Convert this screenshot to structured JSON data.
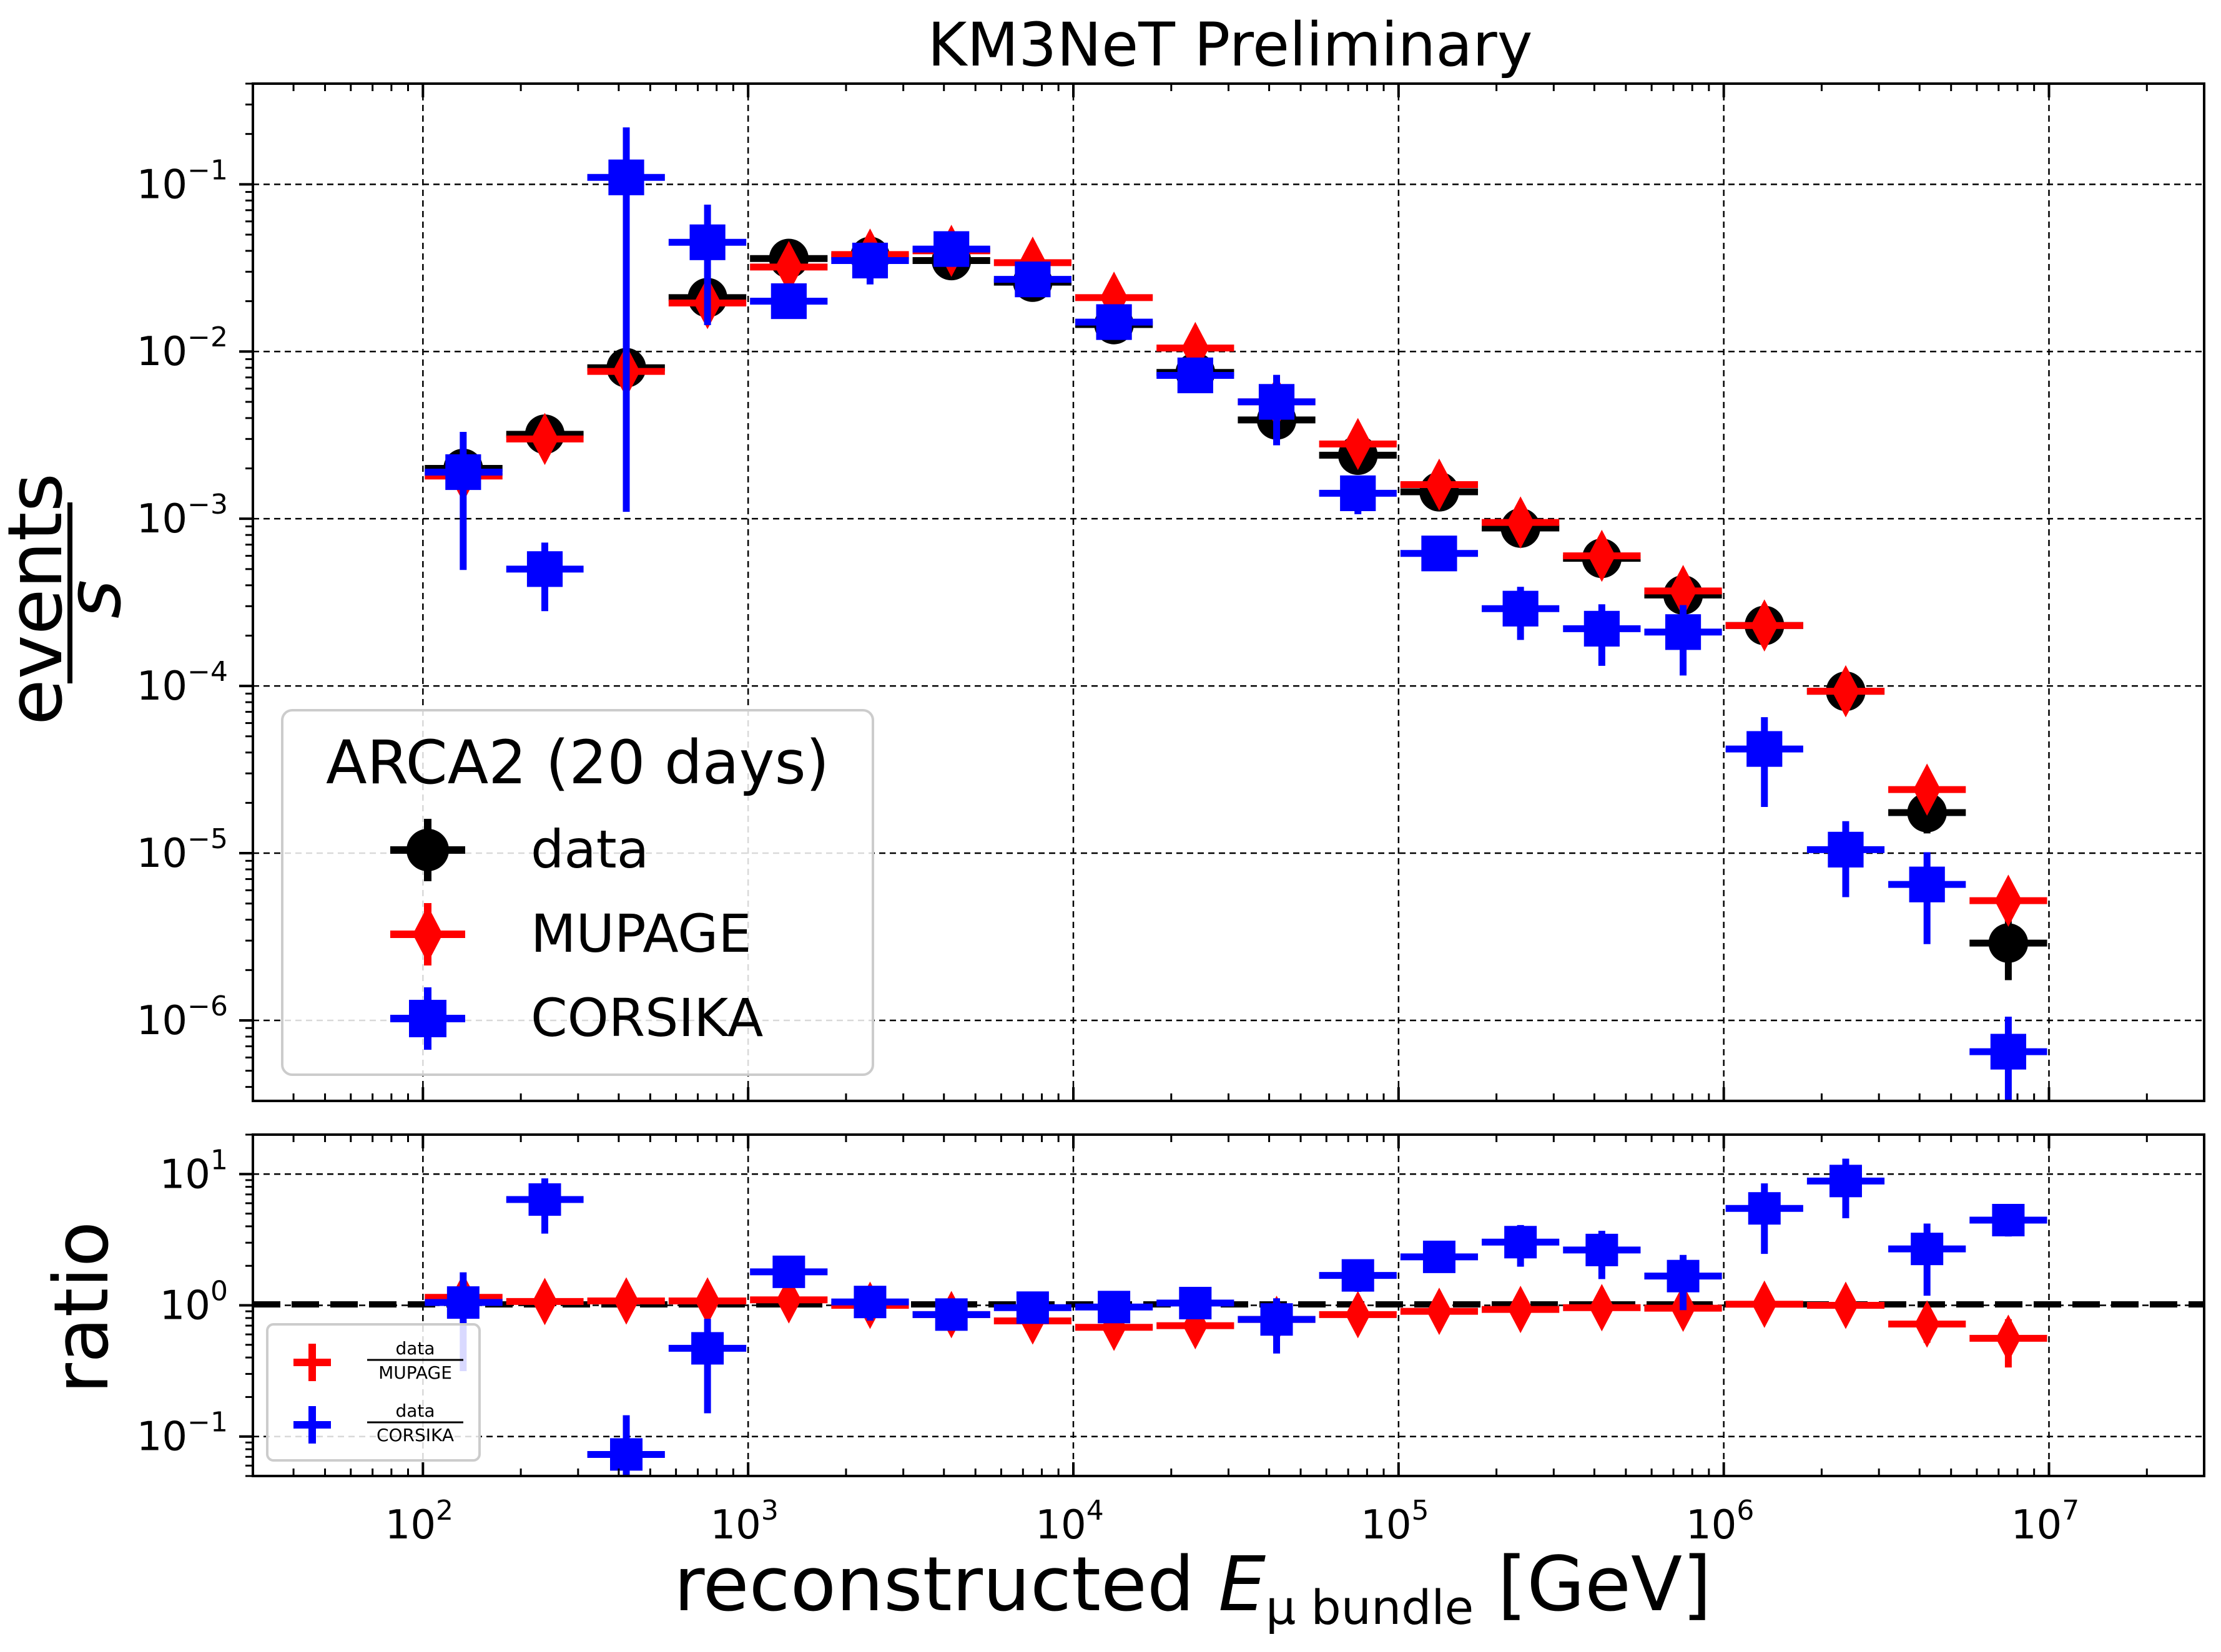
{
  "chart_data": [
    {
      "type": "scatter",
      "panel": "main",
      "title": "KM3NeT Preliminary",
      "xlabel": "reconstructed E_μ bundle [GeV]",
      "ylabel": "events / s",
      "xscale": "log",
      "yscale": "log",
      "xlim": [
        30,
        30000000
      ],
      "ylim": [
        3.3e-07,
        0.4
      ],
      "grid": true,
      "legend_title": "ARCA2 (20 days)",
      "legend_position": "lower-left",
      "x_tick_exponents": [
        2,
        3,
        4,
        5,
        6,
        7
      ],
      "y_tick_exponents": [
        -6,
        -5,
        -4,
        -3,
        -2,
        -1
      ],
      "bin_edges": [
        100,
        178,
        316,
        562,
        1000,
        1778,
        3162,
        5623,
        10000,
        17783,
        31623,
        56234,
        100000,
        177828,
        316228,
        562341,
        1000000,
        1778279,
        3162278,
        5623413,
        10000000
      ],
      "series": [
        {
          "name": "data",
          "color": "#000000",
          "marker": "circle",
          "x": [
            133,
            237,
            422,
            750,
            1334,
            2371,
            4217,
            7499,
            13335,
            23714,
            42170,
            74989,
            133352,
            237137,
            421697,
            749894,
            1333521,
            2371374,
            4216965,
            7498942
          ],
          "y": [
            0.002,
            0.0032,
            0.008,
            0.021,
            0.036,
            0.037,
            0.035,
            0.026,
            0.0145,
            0.0075,
            0.0039,
            0.0024,
            0.00145,
            0.00088,
            0.00058,
            0.00035,
            0.00023,
            9.3e-05,
            1.75e-05,
            2.9e-06
          ],
          "yerr_frac": [
            0.08,
            0.05,
            0.04,
            0.03,
            0.02,
            0.02,
            0.02,
            0.02,
            0.03,
            0.04,
            0.05,
            0.06,
            0.08,
            0.1,
            0.12,
            0.15,
            0.18,
            0.22,
            0.25,
            0.4
          ]
        },
        {
          "name": "MUPAGE",
          "color": "#ff0000",
          "marker": "diamond",
          "x": [
            133,
            237,
            422,
            750,
            1334,
            2371,
            4217,
            7499,
            13335,
            23714,
            42170,
            74989,
            133352,
            237137,
            421697,
            749894,
            1333521,
            2371374,
            4216965,
            7498942
          ],
          "y": [
            0.0018,
            0.003,
            0.0076,
            0.0195,
            0.032,
            0.038,
            0.04,
            0.034,
            0.021,
            0.0105,
            0.005,
            0.0028,
            0.0016,
            0.00095,
            0.0006,
            0.00037,
            0.00023,
            9.3e-05,
            2.4e-05,
            5.2e-06
          ],
          "yerr_frac": [
            0.06,
            0.05,
            0.05,
            0.05,
            0.05,
            0.05,
            0.05,
            0.05,
            0.05,
            0.05,
            0.05,
            0.05,
            0.06,
            0.08,
            0.1,
            0.12,
            0.1,
            0.15,
            0.2,
            0.25
          ]
        },
        {
          "name": "CORSIKA",
          "color": "#0000ff",
          "marker": "square",
          "x": [
            133,
            237,
            422,
            750,
            1334,
            2371,
            4217,
            7499,
            13335,
            23714,
            42170,
            74989,
            133352,
            237137,
            421697,
            749894,
            1333521,
            2371374,
            4216965,
            7498942
          ],
          "y": [
            0.0019,
            0.0005,
            0.11,
            0.045,
            0.02,
            0.035,
            0.041,
            0.027,
            0.015,
            0.0072,
            0.005,
            0.00142,
            0.00062,
            0.00029,
            0.00022,
            0.00021,
            4.2e-05,
            1.05e-05,
            6.5e-06,
            6.5e-07
          ],
          "yerr_frac": [
            0.74,
            0.44,
            0.99,
            0.68,
            0.2,
            0.28,
            0.2,
            0.15,
            0.15,
            0.15,
            0.45,
            0.25,
            0.2,
            0.35,
            0.4,
            0.45,
            0.55,
            0.48,
            0.56,
            0.62
          ]
        }
      ]
    },
    {
      "type": "scatter",
      "panel": "ratio",
      "xlabel": "reconstructed E_μ bundle [GeV]",
      "ylabel": "ratio",
      "xscale": "log",
      "yscale": "log",
      "xlim": [
        30,
        30000000
      ],
      "ylim": [
        0.05,
        20
      ],
      "grid": true,
      "reference_line": 1.0,
      "legend_position": "lower-left",
      "y_tick_exponents": [
        -1,
        0,
        1
      ],
      "series": [
        {
          "name": "data/MUPAGE",
          "numerator": "data",
          "denominator": "MUPAGE",
          "color": "#ff0000",
          "x": [
            133,
            237,
            422,
            750,
            1334,
            2371,
            4217,
            7499,
            13335,
            23714,
            42170,
            74989,
            133352,
            237137,
            421697,
            749894,
            1333521,
            2371374,
            4216965,
            7498942
          ],
          "y": [
            1.15,
            1.07,
            1.08,
            1.08,
            1.1,
            1.0,
            0.85,
            0.76,
            0.68,
            0.7,
            0.78,
            0.85,
            0.9,
            0.93,
            0.96,
            0.95,
            1.02,
            1.0,
            0.72,
            0.56
          ],
          "yerr_frac": [
            0.1,
            0.08,
            0.07,
            0.07,
            0.06,
            0.06,
            0.06,
            0.06,
            0.06,
            0.06,
            0.07,
            0.08,
            0.1,
            0.12,
            0.12,
            0.15,
            0.18,
            0.22,
            0.28,
            0.4
          ]
        },
        {
          "name": "data/CORSIKA",
          "numerator": "data",
          "denominator": "CORSIKA",
          "color": "#0000ff",
          "x": [
            133,
            237,
            422,
            750,
            1334,
            2371,
            4217,
            7499,
            13335,
            23714,
            42170,
            74989,
            133352,
            237137,
            421697,
            749894,
            1333521,
            2371374,
            4216965,
            7498942
          ],
          "y": [
            1.05,
            6.4,
            0.073,
            0.47,
            1.8,
            1.06,
            0.85,
            0.96,
            0.97,
            1.04,
            0.78,
            1.69,
            2.34,
            3.03,
            2.64,
            1.67,
            5.48,
            8.86,
            2.69,
            4.46
          ],
          "yerr_frac": [
            0.7,
            0.45,
            0.99,
            0.68,
            0.2,
            0.28,
            0.2,
            0.15,
            0.15,
            0.15,
            0.45,
            0.25,
            0.2,
            0.35,
            0.4,
            0.45,
            0.55,
            0.48,
            0.56,
            0.25
          ]
        }
      ]
    }
  ],
  "text": {
    "title": "KM3NeT Preliminary",
    "xlabel_pre": "reconstructed ",
    "xlabel_E": "E",
    "xlabel_sub": "μ bundle",
    "xlabel_post": " [GeV]",
    "ylabel_num": "events",
    "ylabel_den": "s",
    "ratio_label": "ratio",
    "legend_title": "ARCA2 (20 days)",
    "legend_data": "data",
    "legend_mupage": "MUPAGE",
    "legend_corsika": "CORSIKA",
    "ratio_num": "data",
    "ratio_den1": "MUPAGE",
    "ratio_den2": "CORSIKA",
    "tick_base": "10"
  },
  "colors": {
    "data": "#000000",
    "mupage": "#ff0000",
    "corsika": "#0000ff"
  }
}
